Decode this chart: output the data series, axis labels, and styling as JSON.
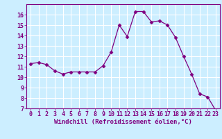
{
  "x": [
    0,
    1,
    2,
    3,
    4,
    5,
    6,
    7,
    8,
    9,
    10,
    11,
    12,
    13,
    14,
    15,
    16,
    17,
    18,
    19,
    20,
    21,
    22,
    23
  ],
  "y": [
    11.3,
    11.4,
    11.2,
    10.6,
    10.3,
    10.5,
    10.5,
    10.5,
    10.5,
    11.1,
    12.4,
    15.0,
    13.9,
    16.3,
    16.3,
    15.3,
    15.4,
    15.0,
    13.8,
    12.0,
    10.3,
    8.4,
    8.1,
    6.8
  ],
  "line_color": "#800080",
  "marker": "D",
  "marker_size": 2.5,
  "bg_color": "#cceeff",
  "grid_color": "#ffffff",
  "xlabel": "Windchill (Refroidissement éolien,°C)",
  "xlabel_fontsize": 6.5,
  "tick_fontsize": 6.0,
  "ylim": [
    7,
    17
  ],
  "xlim": [
    -0.5,
    23.5
  ],
  "yticks": [
    7,
    8,
    9,
    10,
    11,
    12,
    13,
    14,
    15,
    16
  ],
  "xticks": [
    0,
    1,
    2,
    3,
    4,
    5,
    6,
    7,
    8,
    9,
    10,
    11,
    12,
    13,
    14,
    15,
    16,
    17,
    18,
    19,
    20,
    21,
    22,
    23
  ]
}
